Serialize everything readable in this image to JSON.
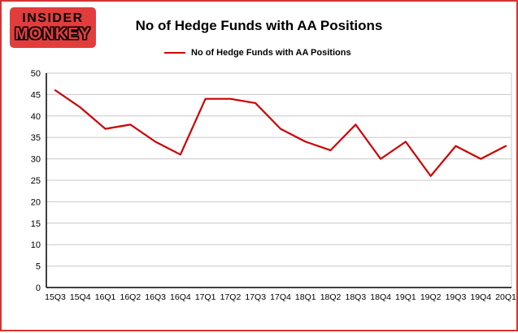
{
  "page": {
    "border_color": "#d63333",
    "background_color": "#ffffff"
  },
  "logo": {
    "line1": "INSIDER",
    "line2": "MONKEY",
    "bg_color": "#e23d3d"
  },
  "header": {
    "title": "No of Hedge Funds with AA Positions"
  },
  "legend": {
    "label": "No of Hedge Funds with AA Positions",
    "line_color": "#cc0000"
  },
  "chart_data": {
    "type": "line",
    "title": "No of Hedge Funds with AA Positions",
    "categories": [
      "15Q3",
      "15Q4",
      "16Q1",
      "16Q2",
      "16Q3",
      "16Q4",
      "17Q1",
      "17Q2",
      "17Q3",
      "17Q4",
      "18Q1",
      "18Q2",
      "18Q3",
      "18Q4",
      "19Q1",
      "19Q2",
      "19Q3",
      "19Q4",
      "20Q1"
    ],
    "series": [
      {
        "name": "No of Hedge Funds with AA Positions",
        "color": "#cc0000",
        "values": [
          46,
          42,
          37,
          38,
          34,
          31,
          44,
          44,
          43,
          37,
          34,
          32,
          38,
          30,
          34,
          26,
          33,
          30,
          33
        ]
      }
    ],
    "xlabel": "",
    "ylabel": "",
    "ylim": [
      0,
      50
    ],
    "ytick_step": 5,
    "grid": true,
    "gridline_color": "#c8c8c8",
    "axis_color": "#000000",
    "legend_position": "top-left"
  }
}
